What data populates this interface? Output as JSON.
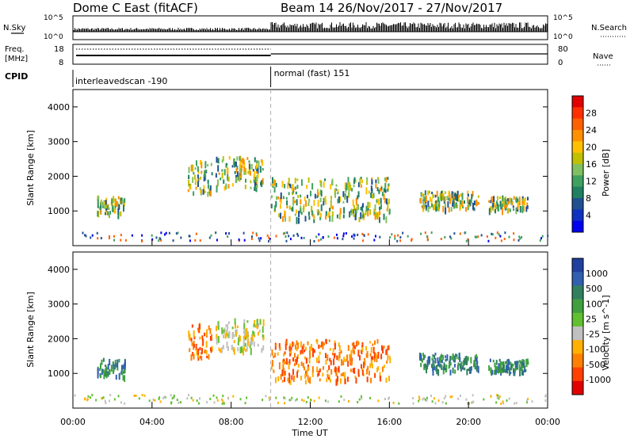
{
  "header": {
    "title": "Dome C East (fitACF)",
    "beam_date": "Beam 14  26/Nov/2017 - 27/Nov/2017"
  },
  "sky_panel": {
    "left_label": "N.Sky",
    "right_label": "N.Search",
    "ticks_left": [
      "10^5",
      "10^0"
    ],
    "ticks_right": [
      "10^5",
      "10^0"
    ]
  },
  "freq_panel": {
    "left_label_1": "Freq.",
    "left_label_2": "[MHz]",
    "right_label": "Nave",
    "ticks_left": [
      "18",
      "8"
    ],
    "ticks_right": [
      "80",
      "0"
    ]
  },
  "cpid": {
    "label": "CPID",
    "segments": [
      "interleavedscan -190",
      "normal (fast) 151"
    ]
  },
  "time_axis": {
    "label": "Time UT",
    "ticks": [
      "00:00",
      "04:00",
      "08:00",
      "12:00",
      "16:00",
      "20:00",
      "00:00"
    ]
  },
  "chart_data": [
    {
      "type": "heatmap",
      "title": "Power",
      "ylabel": "Slant Range [km]",
      "xlabel": "",
      "yticks": [
        "1000",
        "2000",
        "3000",
        "4000"
      ],
      "ylim": [
        0,
        4500
      ],
      "colorbar": {
        "label": "Power [dB]",
        "ticks": [
          "28",
          "24",
          "20",
          "16",
          "12",
          "8",
          "4"
        ],
        "colors": [
          "#e00000",
          "#ff3000",
          "#ff6000",
          "#ff9000",
          "#ffc000",
          "#c0c000",
          "#80c060",
          "#40a060",
          "#208060",
          "#205090",
          "#1030c0",
          "#0000f0"
        ]
      },
      "echo_regions": [
        {
          "t_start": 1.2,
          "t_end": 2.6,
          "r_low": 950,
          "r_high": 1450,
          "level": 8
        },
        {
          "t_start": 5.8,
          "t_end": 7.0,
          "r_low": 1500,
          "r_high": 2500,
          "level": 12
        },
        {
          "t_start": 7.2,
          "t_end": 9.6,
          "r_low": 1700,
          "r_high": 2600,
          "level": 10
        },
        {
          "t_start": 10.0,
          "t_end": 16.0,
          "r_low": 800,
          "r_high": 2000,
          "level": 16
        },
        {
          "t_start": 17.5,
          "t_end": 20.5,
          "r_low": 1100,
          "r_high": 1600,
          "level": 14
        },
        {
          "t_start": 21.0,
          "t_end": 23.0,
          "r_low": 1050,
          "r_high": 1450,
          "level": 12
        }
      ]
    },
    {
      "type": "heatmap",
      "title": "Velocity",
      "ylabel": "Slant Range [km]",
      "xlabel": "Time UT",
      "yticks": [
        "1000",
        "2000",
        "3000",
        "4000"
      ],
      "ylim": [
        0,
        4500
      ],
      "colorbar": {
        "label": "Velocity [m s^-1]",
        "ticks": [
          "1000",
          "500",
          "100",
          "25",
          "-25",
          "-100",
          "-500",
          "-1000"
        ],
        "colors": [
          "#2040a0",
          "#3060b0",
          "#308060",
          "#40a040",
          "#60c030",
          "#c0c0c0",
          "#ffb000",
          "#ff8000",
          "#ff4000",
          "#e00000"
        ]
      },
      "echo_regions": [
        {
          "t_start": 1.2,
          "t_end": 2.6,
          "r_low": 950,
          "r_high": 1450,
          "level": 100
        },
        {
          "t_start": 5.8,
          "t_end": 7.0,
          "r_low": 1500,
          "r_high": 2500,
          "level": -100
        },
        {
          "t_start": 7.2,
          "t_end": 9.6,
          "r_low": 1700,
          "r_high": 2600,
          "level": 25
        },
        {
          "t_start": 10.0,
          "t_end": 16.0,
          "r_low": 800,
          "r_high": 2000,
          "level": -200
        },
        {
          "t_start": 17.5,
          "t_end": 20.5,
          "r_low": 1100,
          "r_high": 1600,
          "level": 300
        },
        {
          "t_start": 21.0,
          "t_end": 23.0,
          "r_low": 1050,
          "r_high": 1450,
          "level": 100
        }
      ]
    }
  ],
  "mode_change_time": 10.0
}
